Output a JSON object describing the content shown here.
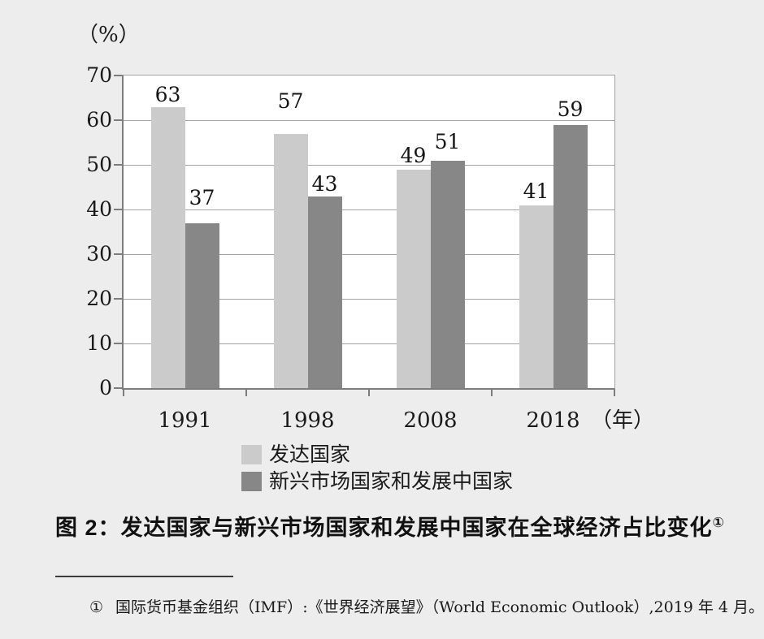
{
  "page": {
    "background": "#ededed"
  },
  "chart": {
    "unit_label": "（%）",
    "x_unit_label": "（年）"
  },
  "chart_data": {
    "type": "bar",
    "title": "",
    "categories": [
      "1991",
      "1998",
      "2008",
      "2018"
    ],
    "series": [
      {
        "name": "发达国家",
        "color": "#cbcbcb",
        "values": [
          63,
          57,
          49,
          41
        ],
        "label_gaps": [
          2,
          27,
          4,
          4
        ]
      },
      {
        "name": "新兴市场国家和发展中国家",
        "color": "#878787",
        "values": [
          37,
          43,
          51,
          59
        ],
        "label_gaps": [
          18,
          2,
          10,
          6
        ]
      }
    ],
    "xlabel": "（年）",
    "ylabel": "（%）",
    "ylim": [
      0,
      70
    ],
    "yticks": [
      0,
      10,
      20,
      30,
      40,
      50,
      60,
      70
    ],
    "grid": true,
    "data_labels": true,
    "legend_position": "bottom"
  },
  "caption": {
    "text": "图 2：发达国家与新兴市场国家和发展中国家在全球经济占比变化",
    "footnote_marker": "①"
  },
  "footnote": {
    "marker": "①",
    "text": "国际货币基金组织（IMF）:《世界经济展望》（World Economic Outlook）,2019 年 4 月。"
  },
  "colors": {
    "background": "#ededed",
    "plot_background": "#ffffff",
    "gridline": "#a3a3a3",
    "axis": "#7d7d7d",
    "series_light": "#cbcbcb",
    "series_dark": "#878787",
    "text": "#1a1a1a"
  }
}
